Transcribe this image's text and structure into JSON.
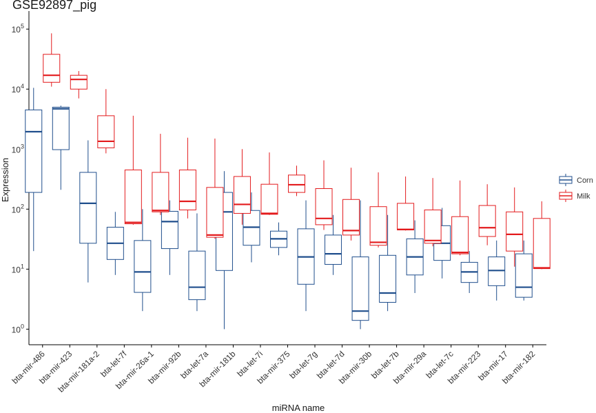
{
  "chart_data": {
    "type": "boxplot",
    "title": "GSE92897_pig",
    "xlabel": "miRNA name",
    "ylabel": "Expression",
    "yscale": "log10",
    "ylim": [
      0.55,
      200000
    ],
    "ytick_exponents": [
      "0",
      "1",
      "2",
      "3",
      "4",
      "5"
    ],
    "ytick_base": "10",
    "legend_position": "right",
    "categories": [
      "bta-mir-486",
      "bta-mir-423",
      "bta-mir-181a-2",
      "bta-let-7f",
      "bta-mir-26a-1",
      "bta-mir-92b",
      "bta-let-7a",
      "bta-mir-181b",
      "bta-let-7i",
      "bta-mir-375",
      "bta-let-7g",
      "bta-let-7d",
      "bta-mir-30b",
      "bta-let-7b",
      "bta-mir-29a",
      "bta-let-7c",
      "bta-mir-223",
      "bta-mir-17",
      "bta-mir-182"
    ],
    "series": [
      {
        "name": "Corn",
        "color": "#1f4e8c",
        "boxes": [
          {
            "category": "bta-mir-486",
            "min": 20,
            "q1": 190,
            "median": 1950,
            "q3": 4500,
            "max": 10500
          },
          {
            "category": "bta-mir-423",
            "min": 210,
            "q1": 980,
            "median": 4700,
            "q3": 5000,
            "max": 5300
          },
          {
            "category": "bta-mir-181a-2",
            "min": 6,
            "q1": 27,
            "median": 125,
            "q3": 410,
            "max": 1400
          },
          {
            "category": "bta-let-7f",
            "min": 8,
            "q1": 14.5,
            "median": 27,
            "q3": 50,
            "max": 90
          },
          {
            "category": "bta-mir-26a-1",
            "min": 2,
            "q1": 4.1,
            "median": 9,
            "q3": 30,
            "max": 100
          },
          {
            "category": "bta-mir-92b",
            "min": 8,
            "q1": 22,
            "median": 62,
            "q3": 92,
            "max": 140
          },
          {
            "category": "bta-let-7a",
            "min": 2,
            "q1": 3.1,
            "median": 5,
            "q3": 20,
            "max": 85
          },
          {
            "category": "bta-mir-181b",
            "min": 1,
            "q1": 9.5,
            "median": 90,
            "q3": 190,
            "max": 430
          },
          {
            "category": "bta-let-7i",
            "min": 13,
            "q1": 25,
            "median": 50,
            "q3": 95,
            "max": 190
          },
          {
            "category": "bta-mir-375",
            "min": 17,
            "q1": 23,
            "median": 32,
            "q3": 43,
            "max": 60
          },
          {
            "category": "bta-let-7g",
            "min": 2,
            "q1": 5.6,
            "median": 16,
            "q3": 47,
            "max": 140
          },
          {
            "category": "bta-let-7d",
            "min": 8,
            "q1": 12,
            "median": 18,
            "q3": 37,
            "max": 80
          },
          {
            "category": "bta-mir-30b",
            "min": 1,
            "q1": 1.4,
            "median": 2,
            "q3": 16,
            "max": 140
          },
          {
            "category": "bta-let-7b",
            "min": 2,
            "q1": 2.8,
            "median": 4,
            "q3": 17,
            "max": 80
          },
          {
            "category": "bta-mir-29a",
            "min": 4,
            "q1": 8,
            "median": 16,
            "q3": 32,
            "max": 65
          },
          {
            "category": "bta-let-7c",
            "min": 7,
            "q1": 14,
            "median": 27,
            "q3": 53,
            "max": 105
          },
          {
            "category": "bta-mir-223",
            "min": 4,
            "q1": 6,
            "median": 9,
            "q3": 13,
            "max": 20
          },
          {
            "category": "bta-mir-17",
            "min": 3,
            "q1": 5.3,
            "median": 9.5,
            "q3": 16,
            "max": 30
          },
          {
            "category": "bta-mir-182",
            "min": 3,
            "q1": 3.4,
            "median": 5,
            "q3": 18,
            "max": 30
          }
        ]
      },
      {
        "name": "Milk",
        "color": "#e31a1c",
        "boxes": [
          {
            "category": "bta-mir-486",
            "min": 11000,
            "q1": 13000,
            "median": 17000,
            "q3": 38000,
            "max": 85000
          },
          {
            "category": "bta-mir-423",
            "min": 7000,
            "q1": 10000,
            "median": 14500,
            "q3": 17000,
            "max": 20000
          },
          {
            "category": "bta-mir-181a-2",
            "min": 850,
            "q1": 1050,
            "median": 1350,
            "q3": 3600,
            "max": 10000
          },
          {
            "category": "bta-let-7f",
            "min": 55,
            "q1": 57,
            "median": 60,
            "q3": 450,
            "max": 3600
          },
          {
            "category": "bta-mir-26a-1",
            "min": 80,
            "q1": 90,
            "median": 95,
            "q3": 410,
            "max": 1800
          },
          {
            "category": "bta-mir-92b",
            "min": 70,
            "q1": 97,
            "median": 135,
            "q3": 450,
            "max": 1550
          },
          {
            "category": "bta-let-7a",
            "min": 32,
            "q1": 34,
            "median": 37,
            "q3": 230,
            "max": 1500
          },
          {
            "category": "bta-mir-181b",
            "min": 55,
            "q1": 85,
            "median": 120,
            "q3": 350,
            "max": 1000
          },
          {
            "category": "bta-let-7i",
            "min": 80,
            "q1": 82,
            "median": 85,
            "q3": 260,
            "max": 880
          },
          {
            "category": "bta-mir-375",
            "min": 165,
            "q1": 190,
            "median": 255,
            "q3": 370,
            "max": 530
          },
          {
            "category": "bta-let-7g",
            "min": 45,
            "q1": 55,
            "median": 70,
            "q3": 220,
            "max": 650
          },
          {
            "category": "bta-let-7d",
            "min": 30,
            "q1": 37,
            "median": 44,
            "q3": 145,
            "max": 490
          },
          {
            "category": "bta-mir-30b",
            "min": 23,
            "q1": 25,
            "median": 28,
            "q3": 110,
            "max": 410
          },
          {
            "category": "bta-let-7b",
            "min": 44,
            "q1": 45,
            "median": 46,
            "q3": 125,
            "max": 350
          },
          {
            "category": "bta-mir-29a",
            "min": 24,
            "q1": 27,
            "median": 30,
            "q3": 97,
            "max": 330
          },
          {
            "category": "bta-let-7c",
            "min": 17,
            "q1": 18,
            "median": 19,
            "q3": 75,
            "max": 300
          },
          {
            "category": "bta-mir-223",
            "min": 25,
            "q1": 35,
            "median": 49,
            "q3": 115,
            "max": 260
          },
          {
            "category": "bta-mir-17",
            "min": 11,
            "q1": 20,
            "median": 38,
            "q3": 90,
            "max": 230
          },
          {
            "category": "bta-mir-182",
            "min": 10,
            "q1": 10.2,
            "median": 10.5,
            "q3": 70,
            "max": 135
          }
        ]
      }
    ]
  }
}
